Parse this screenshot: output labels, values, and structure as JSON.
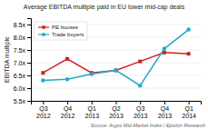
{
  "chart_data": {
    "type": "line",
    "title": "Average EBITDA multiple paid in EU lower mid-cap deals",
    "y_label": "EBITDA multiple",
    "annotations": [
      "Source: Argos Mid-Market Index / Epsilon Research"
    ],
    "categories": [
      "Q3\n2012",
      "Q4\n2012",
      "Q1\n2013",
      "Q2\n2013",
      "Q3\n2013",
      "Q4\n2013",
      "Q1\n2014"
    ],
    "series": [
      {
        "name": "PE houses",
        "color": "#cc2222",
        "marker": "square",
        "values": [
          6.6,
          7.15,
          6.6,
          6.7,
          7.05,
          7.4,
          7.35
        ]
      },
      {
        "name": "Trade buyers",
        "color": "#22aacc",
        "marker": "circle",
        "values": [
          6.3,
          6.35,
          6.55,
          6.7,
          6.1,
          7.55,
          8.3
        ]
      }
    ],
    "ylim": [
      5.5,
      8.75
    ],
    "yticks": [
      {
        "value": 5.5,
        "label": "5.5x"
      },
      {
        "value": 6.0,
        "label": "6.0x"
      },
      {
        "value": 6.5,
        "label": "6.5x"
      },
      {
        "value": 7.0,
        "label": "7.0x"
      },
      {
        "value": 7.5,
        "label": "7.5x"
      },
      {
        "value": 8.0,
        "label": "8.0x"
      },
      {
        "value": 8.5,
        "label": "8.5x"
      }
    ],
    "grid": true,
    "legend": "upper left"
  }
}
